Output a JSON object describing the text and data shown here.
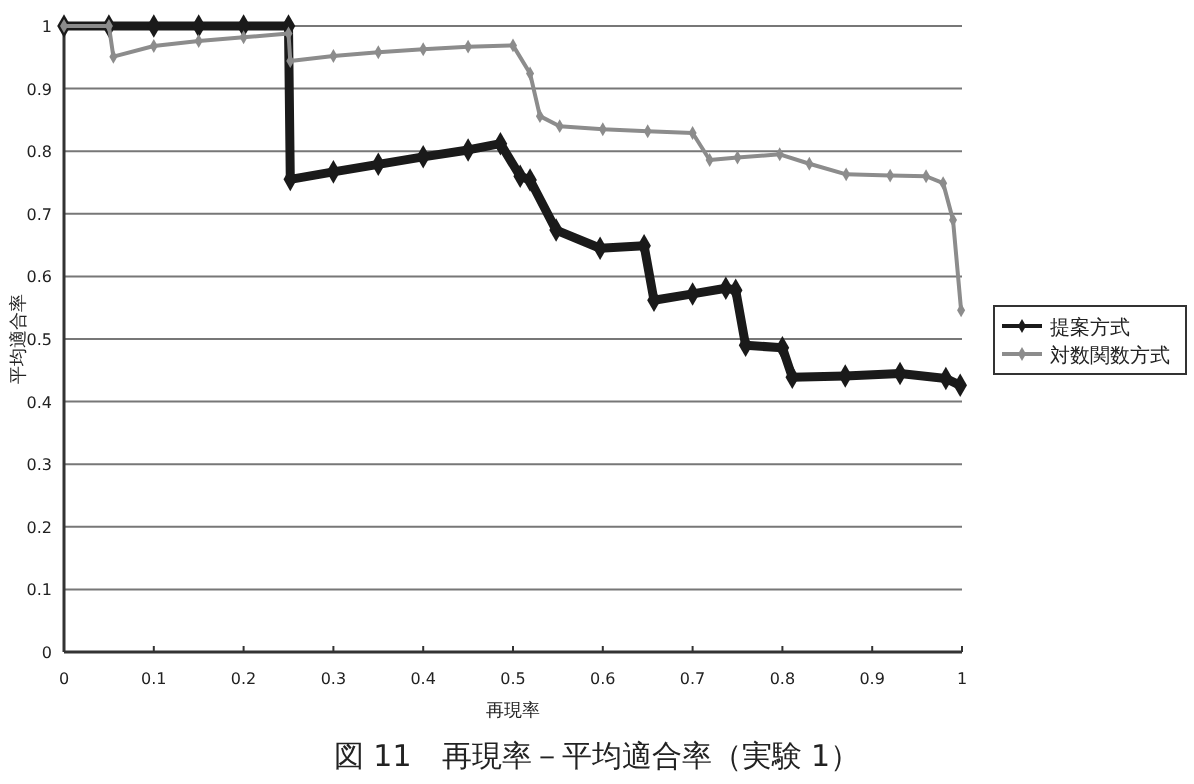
{
  "chart_data": {
    "type": "line",
    "title": "図 11　再現率－平均適合率（実験 1）",
    "xlabel": "再現率",
    "ylabel": "平均適合率",
    "xlim": [
      0,
      1
    ],
    "xticks": [
      0,
      0.1,
      0.2,
      0.3,
      0.4,
      0.5,
      0.6,
      0.7,
      0.8,
      0.9,
      1
    ],
    "ylim": [
      0,
      1
    ],
    "yticks": [
      0,
      0.1,
      0.2,
      0.3,
      0.4,
      0.5,
      0.6,
      0.7,
      0.8,
      0.9,
      1
    ],
    "grid": "y",
    "legend": "right",
    "marker": "diamond",
    "line_style": "solid",
    "series": [
      {
        "name": "提案方式",
        "color": "#1a1a1a",
        "x": [
          0,
          0.05,
          0.1,
          0.15,
          0.2,
          0.25,
          0.252,
          0.3,
          0.35,
          0.4,
          0.45,
          0.486,
          0.508,
          0.519,
          0.548,
          0.597,
          0.646,
          0.657,
          0.7,
          0.737,
          0.748,
          0.759,
          0.8,
          0.811,
          0.87,
          0.931,
          0.982,
          0.998
        ],
        "values": [
          1,
          1,
          1,
          1,
          1,
          1,
          0.755,
          0.767,
          0.779,
          0.791,
          0.802,
          0.812,
          0.76,
          0.754,
          0.674,
          0.645,
          0.649,
          0.562,
          0.572,
          0.581,
          0.578,
          0.49,
          0.486,
          0.439,
          0.441,
          0.445,
          0.437,
          0.426
        ]
      },
      {
        "name": "対数関数方式",
        "color": "#8c8c8c",
        "x": [
          0,
          0.05,
          0.055,
          0.1,
          0.15,
          0.2,
          0.25,
          0.252,
          0.3,
          0.35,
          0.4,
          0.45,
          0.5,
          0.519,
          0.53,
          0.552,
          0.6,
          0.65,
          0.7,
          0.719,
          0.75,
          0.797,
          0.83,
          0.871,
          0.92,
          0.96,
          0.979,
          0.99,
          0.999
        ],
        "values": [
          1,
          1,
          0.951,
          0.968,
          0.976,
          0.982,
          0.988,
          0.944,
          0.952,
          0.958,
          0.963,
          0.967,
          0.969,
          0.924,
          0.856,
          0.84,
          0.835,
          0.832,
          0.829,
          0.786,
          0.79,
          0.795,
          0.78,
          0.763,
          0.761,
          0.76,
          0.749,
          0.69,
          0.546
        ]
      }
    ]
  }
}
